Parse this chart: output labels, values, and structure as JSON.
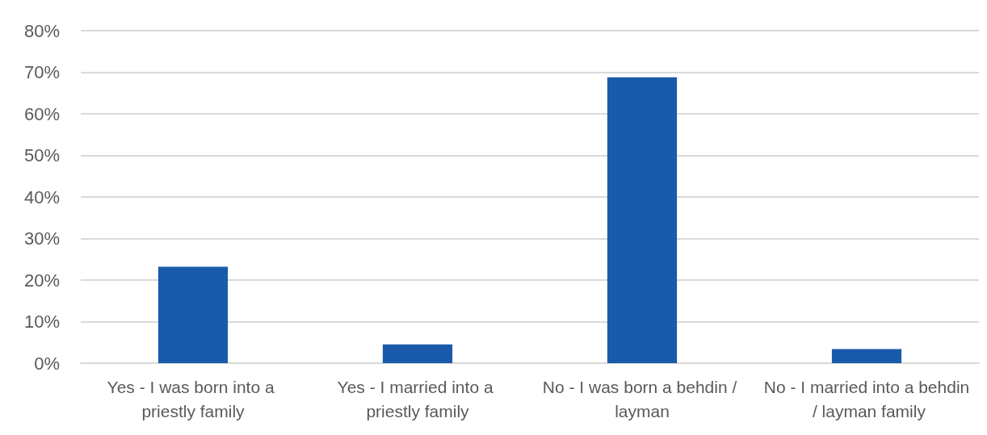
{
  "chart_data": {
    "type": "bar",
    "categories": [
      "Yes - I was born into a priestly family",
      "Yes - I married into a priestly family",
      "No - I was born a behdin / layman",
      "No - I married into a behdin / layman family"
    ],
    "values": [
      23.2,
      4.5,
      68.8,
      3.4
    ],
    "color": "#1a5aab",
    "ylim": [
      0,
      80
    ],
    "yticks": [
      {
        "value": 0,
        "label": "0%"
      },
      {
        "value": 10,
        "label": "10%"
      },
      {
        "value": 20,
        "label": "20%"
      },
      {
        "value": 30,
        "label": "30%"
      },
      {
        "value": 40,
        "label": "40%"
      },
      {
        "value": 50,
        "label": "50%"
      },
      {
        "value": 60,
        "label": "60%"
      },
      {
        "value": 70,
        "label": "70%"
      },
      {
        "value": 80,
        "label": "80%"
      }
    ],
    "grid": true
  }
}
